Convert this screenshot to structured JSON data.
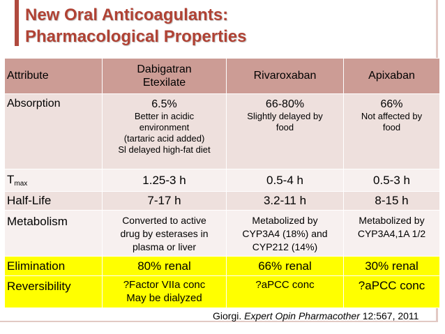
{
  "title": {
    "line1": "New Oral Anticoagulants:",
    "line2": "Pharmacological Properties"
  },
  "header": {
    "attribute": "Attribute",
    "dabigatran_line1": "Dabigatran",
    "dabigatran_line2": "Etexilate",
    "rivaroxaban": "Rivaroxaban",
    "apixaban": "Apixaban"
  },
  "rows": {
    "absorption": {
      "label": "Absorption",
      "dabigatran": {
        "value": "6.5%",
        "notes": [
          "Better in acidic",
          "environment",
          "(tartaric acid added)",
          "Sl delayed high-fat diet"
        ]
      },
      "rivaroxaban": {
        "value": "66-80%",
        "notes": [
          "Slightly delayed by",
          "food"
        ]
      },
      "apixaban": {
        "value": "66%",
        "notes": [
          "Not affected by",
          "food"
        ]
      }
    },
    "tmax": {
      "label_main": "T",
      "label_sub": "max",
      "dabigatran": "1.25-3 h",
      "rivaroxaban": "0.5-4 h",
      "apixaban": "0.5-3 h"
    },
    "halflife": {
      "label": "Half-Life",
      "dabigatran": "7-17 h",
      "rivaroxaban": "3.2-11 h",
      "apixaban": "8-15 h"
    },
    "metabolism": {
      "label": "Metabolism",
      "dabigatran": [
        "Converted to active",
        "drug by esterases in",
        "plasma or liver"
      ],
      "rivaroxaban": [
        "Metabolized by",
        "CYP3A4 (18%) and",
        "CYP212 (14%)"
      ],
      "apixaban": [
        "Metabolized by",
        "CYP3A4,1A 1/2"
      ]
    },
    "elimination": {
      "label": "Elimination",
      "dabigatran": "80% renal",
      "rivaroxaban": "66% renal",
      "apixaban": "30% renal"
    },
    "reversibility": {
      "label": "Reversibility",
      "dabigatran": [
        "?Factor VIIa conc",
        "May be dialyzed"
      ],
      "rivaroxaban": "?aPCC conc",
      "apixaban": "?aPCC conc"
    }
  },
  "citation": {
    "author": "Giorgi. ",
    "journal": "Expert Opin Pharmacother",
    "ref": " 12:567, 2011"
  },
  "colors": {
    "title": "#b04234",
    "header_bg": "#cc9c95",
    "row_light": "#eee0dd",
    "row_lighter": "#f7f0ef",
    "highlight": "#ffff00"
  }
}
